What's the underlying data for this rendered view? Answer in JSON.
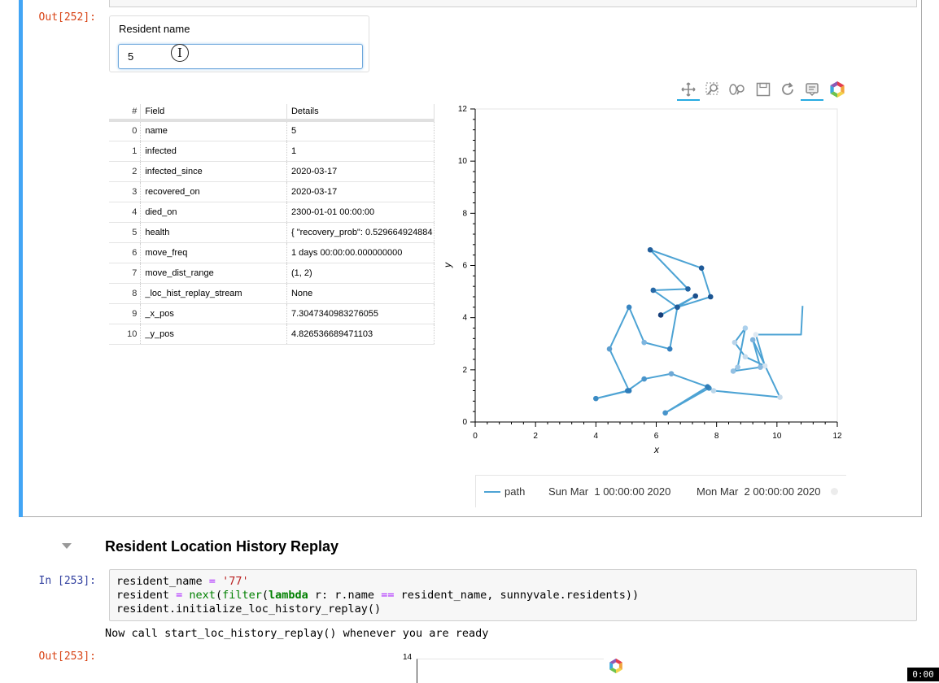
{
  "prompts": {
    "out_252": "Out[252]:",
    "in_253": "In [253]:",
    "out_253": "Out[253]:"
  },
  "widget": {
    "label": "Resident name",
    "value": "5"
  },
  "toolbar": {
    "tools": [
      "pan-icon",
      "box-zoom-icon",
      "wheel-zoom-icon",
      "save-icon",
      "reset-icon",
      "hover-icon",
      "bokeh-logo-icon"
    ]
  },
  "table": {
    "headers": [
      "#",
      "Field",
      "Details"
    ],
    "rows": [
      [
        "0",
        "name",
        "5"
      ],
      [
        "1",
        "infected",
        "1"
      ],
      [
        "2",
        "infected_since",
        "2020-03-17"
      ],
      [
        "3",
        "recovered_on",
        "2020-03-17"
      ],
      [
        "4",
        "died_on",
        "2300-01-01 00:00:00"
      ],
      [
        "5",
        "health",
        "{ \"recovery_prob\": 0.529664924884"
      ],
      [
        "6",
        "move_freq",
        "1 days 00:00:00.000000000"
      ],
      [
        "7",
        "move_dist_range",
        "(1, 2)"
      ],
      [
        "8",
        "_loc_hist_replay_stream",
        "None"
      ],
      [
        "9",
        "_x_pos",
        "7.3047340983276055"
      ],
      [
        "10",
        "_y_pos",
        "4.826536689471103"
      ]
    ]
  },
  "chart_data": {
    "type": "line",
    "xlabel": "x",
    "ylabel": "y",
    "xlim": [
      0,
      12
    ],
    "ylim": [
      0,
      12
    ],
    "xticks": [
      0,
      2,
      4,
      6,
      8,
      10,
      12
    ],
    "yticks": [
      0,
      2,
      4,
      6,
      8,
      10,
      12
    ],
    "grid": false,
    "legend_position": "bottom",
    "series": [
      {
        "name": "path",
        "line_color": "#4da3d4",
        "points": [
          [
            10.85,
            4.45
          ],
          [
            10.8,
            3.35
          ],
          [
            9.3,
            3.35
          ],
          [
            9.6,
            2.15
          ],
          [
            8.95,
            2.5
          ],
          [
            8.6,
            3.05
          ],
          [
            8.95,
            3.6
          ],
          [
            8.7,
            2.1
          ],
          [
            8.55,
            1.95
          ],
          [
            9.45,
            2.1
          ],
          [
            9.2,
            3.15
          ],
          [
            10.1,
            0.95
          ],
          [
            7.9,
            1.2
          ],
          [
            7.75,
            1.3
          ],
          [
            6.3,
            0.35
          ],
          [
            7.7,
            1.35
          ],
          [
            6.5,
            1.85
          ],
          [
            5.6,
            1.65
          ],
          [
            5.05,
            1.2
          ],
          [
            4.0,
            0.9
          ],
          [
            5.1,
            1.2
          ],
          [
            4.45,
            2.8
          ],
          [
            5.1,
            4.4
          ],
          [
            5.6,
            3.05
          ],
          [
            6.45,
            2.8
          ],
          [
            6.7,
            4.4
          ],
          [
            5.9,
            5.05
          ],
          [
            7.05,
            5.1
          ],
          [
            5.8,
            6.6
          ],
          [
            7.5,
            5.9
          ],
          [
            7.8,
            4.8
          ],
          [
            6.7,
            4.4
          ],
          [
            7.3,
            4.83
          ],
          [
            6.15,
            4.1
          ]
        ],
        "point_shades": [
          "#e6eef5",
          "#e6eef5",
          "#dfe9f2",
          "#d4e3f0",
          "#c6dced",
          "#b9d4ea",
          "#acd0ec",
          "#9fc7e6",
          "#93c0e2",
          "#8ab9df",
          "#7fb3dc",
          "#c9dbea",
          "#bcd7ea",
          "#3d8dc4",
          "#4894cb",
          "#2f7eb9",
          "#6ea8d5",
          "#4a95cb",
          "#2f7fbc",
          "#3b8bc4",
          "#2e7dba",
          "#5d9ecf",
          "#3986c2",
          "#7db5df",
          "#3580bf",
          "#2a6fae",
          "#2769a7",
          "#2264a3",
          "#225f9c",
          "#1f5a98",
          "#1c5592",
          "#215c9a",
          "#1b4f8c",
          "#173f7a"
        ]
      }
    ],
    "legend_entries": [
      "path",
      "Sun Mar  1 00:00:00 2020",
      "Mon Mar  2 00:00:00 2020"
    ]
  },
  "section": {
    "title": "Resident Location History Replay"
  },
  "code": {
    "line1_a": "resident_name ",
    "line1_eq": "=",
    "line1_str": " '77'",
    "line2_a": "resident ",
    "line2_eq": "=",
    "line2_next": " next",
    "line2_b": "(",
    "line2_filter": "filter",
    "line2_c": "(",
    "line2_lambda": "lambda",
    "line2_d": " r: r.name ",
    "line2_eqeq": "==",
    "line2_e": " resident_name, sunnyvale.residents))",
    "line3": "resident.initialize_loc_history_replay()"
  },
  "stdout": "Now call start_loc_history_replay() whenever you are ready",
  "mini_chart": {
    "y_top_tick": "14"
  },
  "timer": "0:00"
}
